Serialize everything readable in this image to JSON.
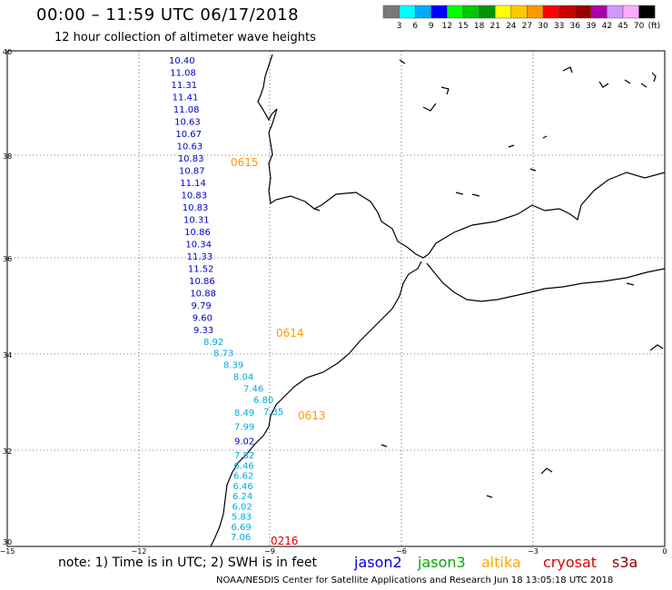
{
  "header": {
    "title": "00:00 – 11:59 UTC 06/17/2018",
    "subtitle": "12 hour collection of altimeter wave heights"
  },
  "colorbar": {
    "labels": [
      "3",
      "6",
      "9",
      "12",
      "15",
      "18",
      "21",
      "24",
      "27",
      "30",
      "33",
      "36",
      "39",
      "42",
      "45",
      "70"
    ],
    "unit": "(ft)",
    "colors": [
      "#787878",
      "#00ffff",
      "#00aaff",
      "#0000ff",
      "#00ff00",
      "#00c800",
      "#009600",
      "#ffff00",
      "#ffc800",
      "#ff9600",
      "#ff0000",
      "#c80000",
      "#960000",
      "#aa00aa",
      "#d296ff",
      "#ffaaff",
      "#000000"
    ]
  },
  "axes": {
    "lat_labels": [
      "40",
      "38",
      "36",
      "34",
      "32",
      "30"
    ],
    "lon_labels": [
      "−15",
      "−12",
      "−9",
      "−6",
      "−3",
      "0"
    ]
  },
  "track": {
    "readings": [
      {
        "label": "10.40",
        "color": "#0000cc"
      },
      {
        "label": "11.08",
        "color": "#0000cc"
      },
      {
        "label": "11.31",
        "color": "#0000cc"
      },
      {
        "label": "11.41",
        "color": "#0000cc"
      },
      {
        "label": "11.08",
        "color": "#0000cc"
      },
      {
        "label": "10.63",
        "color": "#0000cc"
      },
      {
        "label": "10.67",
        "color": "#0000cc"
      },
      {
        "label": "10.63",
        "color": "#0000cc"
      },
      {
        "label": "10.83",
        "color": "#0000cc"
      },
      {
        "label": "10.87",
        "color": "#0000cc"
      },
      {
        "label": "11.14",
        "color": "#0000cc"
      },
      {
        "label": "10.83",
        "color": "#0000cc"
      },
      {
        "label": "10.83",
        "color": "#0000cc"
      },
      {
        "label": "10.31",
        "color": "#0000cc"
      },
      {
        "label": "10.86",
        "color": "#0000cc"
      },
      {
        "label": "10.34",
        "color": "#0000cc"
      },
      {
        "label": "11.33",
        "color": "#0000cc"
      },
      {
        "label": "11.52",
        "color": "#0000cc"
      },
      {
        "label": "10.86",
        "color": "#0000cc"
      },
      {
        "label": "10.88",
        "color": "#0000cc"
      },
      {
        "label": "9.79",
        "color": "#0000cc"
      },
      {
        "label": "9.60",
        "color": "#0000cc"
      },
      {
        "label": "9.33",
        "color": "#0000cc"
      },
      {
        "label": "8.92",
        "color": "#00aadd"
      },
      {
        "label": "8.73",
        "color": "#00aadd"
      },
      {
        "label": "8.39",
        "color": "#00aadd"
      },
      {
        "label": "8.04",
        "color": "#00aadd"
      },
      {
        "label": "7.46",
        "color": "#00aadd"
      },
      {
        "label": "6.80",
        "color": "#00aadd"
      },
      {
        "label": "7.35",
        "color": "#00aadd"
      },
      {
        "label": "8.49",
        "color": "#00aadd"
      },
      {
        "label": "7.99",
        "color": "#00aadd"
      },
      {
        "label": "9.02",
        "color": "#0000cc"
      },
      {
        "label": "7.82",
        "color": "#00aadd"
      },
      {
        "label": "6.46",
        "color": "#00aadd"
      },
      {
        "label": "6.62",
        "color": "#00aadd"
      },
      {
        "label": "6.46",
        "color": "#00aadd"
      },
      {
        "label": "6.24",
        "color": "#00aadd"
      },
      {
        "label": "6.02",
        "color": "#00aadd"
      },
      {
        "label": "5.83",
        "color": "#00aadd"
      },
      {
        "label": "6.69",
        "color": "#00aadd"
      },
      {
        "label": "7.06",
        "color": "#00aadd"
      }
    ],
    "time_labels": [
      {
        "label": "0615",
        "color": "#ff9900"
      },
      {
        "label": "0614",
        "color": "#ff9900"
      },
      {
        "label": "0613",
        "color": "#ff9900"
      },
      {
        "label": "0216",
        "color": "#dd0000"
      }
    ]
  },
  "footer": {
    "note": "note:  1) Time is in UTC;  2) SWH is in feet",
    "credit": "NOAA/NESDIS Center for Satellite Applications and Research     Jun 18 13:05:18 UTC 2018",
    "satellites": [
      {
        "name": "jason2",
        "color": "#0000dd"
      },
      {
        "name": "jason3",
        "color": "#00aa00"
      },
      {
        "name": "altika",
        "color": "#ffaa00"
      },
      {
        "name": "cryosat",
        "color": "#dd0000"
      },
      {
        "name": "s3a",
        "color": "#880000"
      }
    ]
  }
}
